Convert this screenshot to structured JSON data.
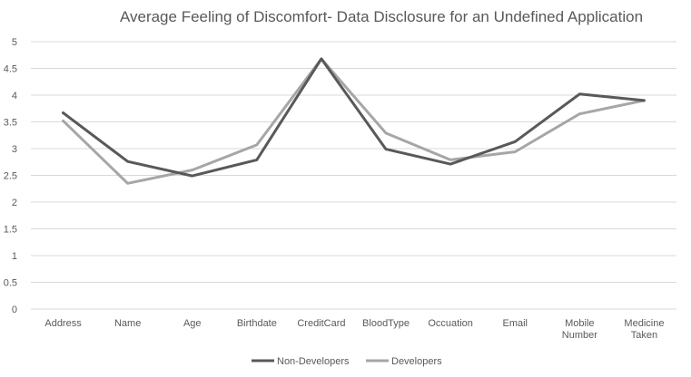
{
  "chart_data": {
    "type": "line",
    "title": "Average Feeling of Discomfort- Data Disclosure for an Undefined Application",
    "xlabel": "",
    "ylabel": "",
    "categories": [
      "Address",
      "Name",
      "Age",
      "Birthdate",
      "CreditCard",
      "BloodType",
      "Occuation",
      "Email",
      "Mobile Number",
      "Medicine Taken"
    ],
    "ylim": [
      0,
      5
    ],
    "yticks": [
      "0",
      "0.5",
      "1",
      "1.5",
      "2",
      "2.5",
      "3",
      "3.5",
      "4",
      "4.5",
      "5"
    ],
    "grid": true,
    "legend_position": "bottom",
    "series": [
      {
        "name": "Non-Developers",
        "color": "#595959",
        "values": [
          3.67,
          2.76,
          2.49,
          2.79,
          4.68,
          2.99,
          2.71,
          3.13,
          4.02,
          3.9
        ]
      },
      {
        "name": "Developers",
        "color": "#a6a6a6",
        "values": [
          3.52,
          2.35,
          2.6,
          3.07,
          4.68,
          3.29,
          2.79,
          2.94,
          3.65,
          3.9
        ]
      }
    ]
  }
}
